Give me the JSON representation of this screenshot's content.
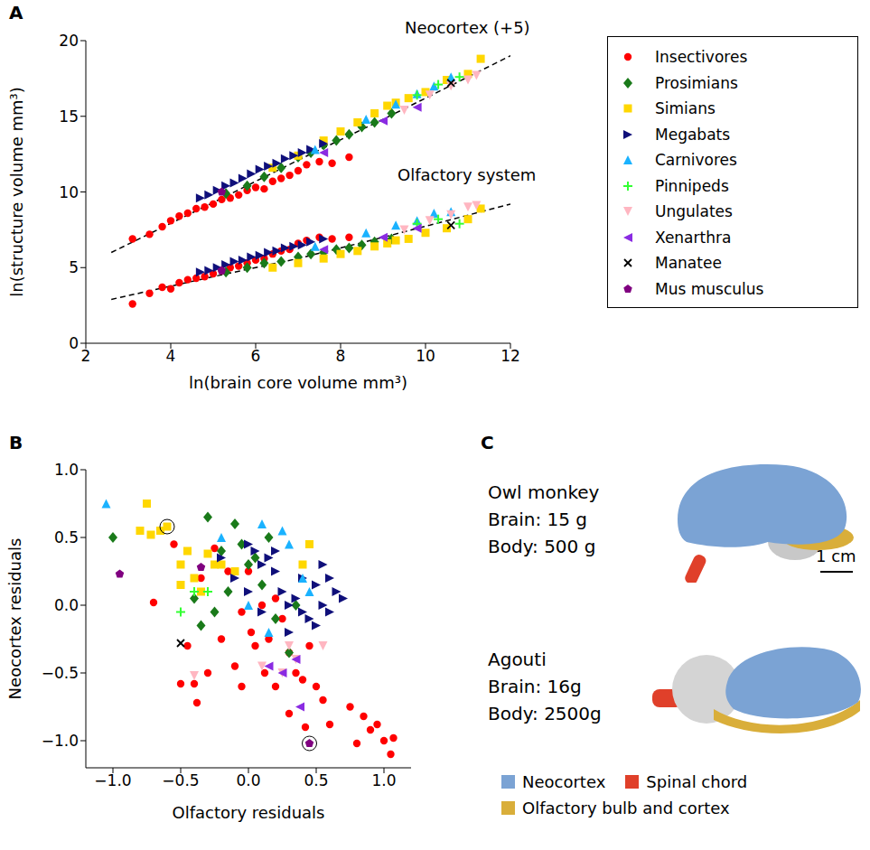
{
  "chart_data": [
    {
      "panel": "A",
      "type": "scatter",
      "xlabel": "ln(brain core volume mm³)",
      "ylabel": "ln(structure volume mm³)",
      "xlim": [
        2,
        12
      ],
      "xticks": [
        2,
        4,
        6,
        8,
        10,
        12
      ],
      "ylim": [
        0,
        20
      ],
      "yticks": [
        0,
        5,
        10,
        15,
        20
      ],
      "annotations": [
        "Neocortex (+5)",
        "Olfactory system"
      ],
      "legend": "right",
      "grid": false,
      "fits": [
        {
          "color": "#000000",
          "line_style": "dashed",
          "x": [
            2.6,
            5,
            7,
            9,
            12
          ],
          "y": [
            6.0,
            9.3,
            12.1,
            14.8,
            19.0
          ]
        },
        {
          "color": "#000000",
          "line_style": "dashed",
          "x": [
            2.6,
            5,
            7,
            9,
            12
          ],
          "y": [
            2.9,
            4.4,
            5.6,
            7.0,
            9.2
          ]
        }
      ],
      "series": [
        {
          "name": "Insectivores",
          "color": "#ff0000",
          "marker": "circle",
          "x": [
            3.1,
            3.5,
            3.8,
            4.0,
            4.2,
            4.4,
            4.6,
            4.8,
            5.0,
            5.2,
            5.4,
            5.6,
            5.8,
            6.0,
            6.2,
            6.4,
            6.6,
            6.8,
            7.0,
            7.2,
            7.5,
            7.8,
            8.2
          ],
          "neocortex": [
            6.9,
            7.2,
            7.7,
            8.1,
            8.4,
            8.6,
            8.9,
            9.0,
            9.2,
            9.5,
            9.6,
            9.8,
            10.1,
            10.3,
            10.2,
            10.7,
            10.9,
            11.1,
            11.4,
            11.8,
            12.0,
            11.9,
            12.3
          ],
          "olfactory": [
            2.6,
            3.3,
            3.7,
            3.6,
            4.0,
            4.2,
            4.3,
            4.4,
            4.6,
            4.8,
            5.0,
            5.1,
            5.3,
            5.5,
            5.6,
            5.9,
            6.1,
            6.2,
            6.6,
            6.8,
            7.0,
            6.9,
            7.0
          ]
        },
        {
          "name": "Prosimians",
          "color": "#1a7a1a",
          "marker": "diamond",
          "x": [
            5.3,
            5.8,
            6.2,
            6.6,
            7.0,
            7.3,
            7.6,
            7.9,
            8.2,
            8.5,
            8.8,
            9.2
          ],
          "neocortex": [
            9.9,
            10.4,
            11.0,
            11.6,
            12.3,
            12.6,
            13.1,
            13.4,
            13.8,
            14.3,
            14.6,
            15.2
          ],
          "olfactory": [
            4.7,
            5.0,
            5.3,
            5.4,
            5.7,
            5.9,
            6.0,
            6.2,
            6.3,
            6.5,
            6.7,
            6.9
          ]
        },
        {
          "name": "Simians",
          "color": "#ffd700",
          "marker": "square",
          "x": [
            6.4,
            7.0,
            7.6,
            8.0,
            8.4,
            8.8,
            9.1,
            9.3,
            9.6,
            10.0,
            10.5,
            11.0,
            11.3
          ],
          "neocortex": [
            11.6,
            12.4,
            13.4,
            14.0,
            14.6,
            15.2,
            15.7,
            15.9,
            16.2,
            16.6,
            17.4,
            17.8,
            18.8
          ],
          "olfactory": [
            5.0,
            5.3,
            5.6,
            5.9,
            6.1,
            6.4,
            6.6,
            6.8,
            6.9,
            7.3,
            7.6,
            8.2,
            8.9
          ]
        },
        {
          "name": "Megabats",
          "color": "#0f0f7a",
          "marker": "triangle-right",
          "x": [
            4.7,
            4.9,
            5.1,
            5.3,
            5.5,
            5.7,
            5.9,
            6.1,
            6.3,
            6.5,
            6.7,
            6.9,
            7.1,
            7.3,
            7.6
          ],
          "neocortex": [
            9.6,
            9.8,
            10.1,
            10.4,
            10.6,
            10.9,
            11.2,
            11.5,
            11.7,
            11.9,
            12.2,
            12.4,
            12.6,
            12.8,
            13.2
          ],
          "olfactory": [
            4.7,
            4.8,
            5.0,
            5.2,
            5.4,
            5.5,
            5.7,
            5.8,
            6.0,
            6.1,
            6.3,
            6.4,
            6.5,
            6.7,
            6.9
          ]
        },
        {
          "name": "Carnivores",
          "color": "#1ab2ff",
          "marker": "triangle-up",
          "x": [
            7.4,
            8.6,
            9.3,
            9.8,
            10.2,
            10.6
          ],
          "neocortex": [
            12.8,
            14.8,
            15.8,
            16.5,
            17.0,
            17.6
          ],
          "olfactory": [
            6.4,
            7.3,
            7.8,
            8.1,
            8.6,
            8.7
          ]
        },
        {
          "name": "Pinnipeds",
          "color": "#33ff33",
          "marker": "plus",
          "x": [
            9.8,
            10.3,
            10.8
          ],
          "neocortex": [
            16.4,
            17.1,
            17.6
          ],
          "olfactory": [
            7.9,
            8.2,
            7.9
          ]
        },
        {
          "name": "Ungulates",
          "color": "#ffb6c1",
          "marker": "triangle-down",
          "x": [
            9.5,
            10.1,
            10.6,
            11.0,
            11.2
          ],
          "neocortex": [
            15.4,
            16.4,
            17.0,
            17.4,
            17.7
          ],
          "olfactory": [
            7.5,
            8.1,
            8.5,
            9.0,
            9.1
          ]
        },
        {
          "name": "Xenarthra",
          "color": "#8a2be2",
          "marker": "triangle-left",
          "x": [
            7.6,
            9.0,
            9.8
          ],
          "neocortex": [
            12.6,
            14.7,
            15.6
          ],
          "olfactory": [
            6.2,
            7.0,
            7.6
          ]
        },
        {
          "name": "Manatee",
          "color": "#000000",
          "marker": "x",
          "x": [
            10.6
          ],
          "neocortex": [
            17.2
          ],
          "olfactory": [
            7.8
          ]
        },
        {
          "name": "Mus musculus",
          "color": "#800080",
          "marker": "pentagon",
          "x": [
            5.2
          ],
          "neocortex": [
            10.0
          ],
          "olfactory": [
            4.8
          ]
        }
      ]
    },
    {
      "panel": "B",
      "type": "scatter",
      "xlabel": "Olfactory residuals",
      "ylabel": "Neocortex residuals",
      "xlim": [
        -1.2,
        1.2
      ],
      "ylim": [
        -1.2,
        1.0
      ],
      "grid": false,
      "xticks": [
        {
          "value": -1,
          "label": "−1.0"
        },
        {
          "value": -0.5,
          "label": "−0.5"
        },
        {
          "value": 0,
          "label": "0.0"
        },
        {
          "value": 0.5,
          "label": "0.5"
        },
        {
          "value": 1,
          "label": "1.0"
        }
      ],
      "yticks": [
        {
          "value": -1,
          "label": "−1.0"
        },
        {
          "value": -0.5,
          "label": "−0.5"
        },
        {
          "value": 0,
          "label": "0.0"
        },
        {
          "value": 0.5,
          "label": "0.5"
        },
        {
          "value": 1,
          "label": "1.0"
        }
      ],
      "highlighted": [
        {
          "x": -0.6,
          "y": 0.58
        },
        {
          "x": 0.45,
          "y": -1.02
        }
      ],
      "series": [
        {
          "name": "Insectivores",
          "color": "#ff0000",
          "marker": "circle",
          "x": [
            -0.7,
            -0.55,
            -0.5,
            -0.4,
            -0.38,
            -0.3,
            -0.2,
            -0.15,
            -0.1,
            -0.05,
            0.0,
            0.02,
            0.05,
            0.1,
            0.12,
            0.15,
            0.2,
            0.25,
            0.3,
            0.35,
            0.4,
            0.42,
            0.45,
            0.5,
            0.55,
            0.6,
            0.75,
            0.8,
            0.85,
            0.9,
            0.95,
            1.0,
            1.05,
            1.07,
            -0.25,
            -0.35,
            -0.05,
            0.2,
            -0.45,
            0.3
          ],
          "y": [
            0.02,
            0.45,
            -0.58,
            -0.58,
            -0.72,
            -0.5,
            -0.25,
            0.25,
            -0.45,
            -0.6,
            0.25,
            -0.2,
            -0.3,
            0.0,
            -0.5,
            -0.25,
            -0.6,
            -0.1,
            -0.35,
            -0.5,
            -0.55,
            -0.9,
            -0.3,
            -0.6,
            -0.7,
            -0.88,
            -0.75,
            -1.02,
            -0.82,
            -0.92,
            -0.88,
            -1.0,
            -1.1,
            -0.98,
            0.42,
            0.2,
            -0.05,
            0.05,
            -0.3,
            -0.8
          ]
        },
        {
          "name": "Prosimians",
          "color": "#1a7a1a",
          "marker": "diamond",
          "x": [
            -1.0,
            -0.4,
            -0.3,
            -0.2,
            -0.1,
            -0.05,
            0.0,
            0.05,
            -0.35,
            -0.25,
            0.1,
            0.2,
            0.3,
            0.35,
            -0.15,
            0.15
          ],
          "y": [
            0.5,
            0.05,
            0.65,
            0.4,
            0.6,
            0.45,
            0.3,
            0.35,
            -0.15,
            -0.05,
            0.15,
            -0.1,
            -0.35,
            0.0,
            0.1,
            0.5
          ]
        },
        {
          "name": "Simians",
          "color": "#ffd700",
          "marker": "square",
          "x": [
            -0.75,
            -0.8,
            -0.72,
            -0.65,
            -0.6,
            -0.5,
            -0.45,
            -0.4,
            -0.3,
            -0.25,
            -0.2,
            -0.1,
            -0.5,
            -0.35,
            0.45,
            0.4
          ],
          "y": [
            0.75,
            0.55,
            0.52,
            0.55,
            0.58,
            0.3,
            0.4,
            0.2,
            0.38,
            0.3,
            0.3,
            0.25,
            0.15,
            0.1,
            0.45,
            0.3
          ]
        },
        {
          "name": "Megabats",
          "color": "#0f0f7a",
          "marker": "triangle-right",
          "x": [
            -0.2,
            -0.1,
            0.0,
            0.05,
            0.1,
            0.15,
            0.2,
            0.25,
            0.3,
            0.35,
            0.4,
            0.45,
            0.5,
            0.55,
            0.6,
            0.65,
            0.7,
            0.5,
            0.3,
            0.1,
            0.2,
            0.55,
            0.6,
            0.0,
            0.4
          ],
          "y": [
            0.35,
            0.2,
            0.45,
            0.4,
            0.3,
            0.35,
            0.25,
            0.1,
            0.0,
            0.05,
            -0.05,
            -0.1,
            0.15,
            0.0,
            -0.05,
            0.1,
            0.05,
            -0.15,
            -0.2,
            -0.05,
            0.4,
            0.3,
            0.2,
            0.1,
            0.2
          ]
        },
        {
          "name": "Carnivores",
          "color": "#1ab2ff",
          "marker": "triangle-up",
          "x": [
            -1.05,
            -0.2,
            0.1,
            0.25,
            0.3,
            0.4,
            0.45,
            0.0,
            0.15
          ],
          "y": [
            0.75,
            0.5,
            0.6,
            0.55,
            0.45,
            0.2,
            0.1,
            0.0,
            -0.2
          ]
        },
        {
          "name": "Pinnipeds",
          "color": "#33ff33",
          "marker": "plus",
          "x": [
            -0.5,
            -0.3,
            -0.4
          ],
          "y": [
            -0.05,
            0.1,
            0.1
          ]
        },
        {
          "name": "Ungulates",
          "color": "#ffb6c1",
          "marker": "triangle-down",
          "x": [
            -0.4,
            0.1,
            0.25,
            0.3,
            0.35,
            0.55
          ],
          "y": [
            -0.52,
            -0.45,
            -0.5,
            -0.3,
            -0.4,
            -0.3
          ]
        },
        {
          "name": "Xenarthra",
          "color": "#8a2be2",
          "marker": "triangle-left",
          "x": [
            0.15,
            0.25,
            0.38,
            0.35
          ],
          "y": [
            -0.45,
            -0.5,
            -0.75,
            -0.4
          ]
        },
        {
          "name": "Manatee",
          "color": "#000000",
          "marker": "x",
          "x": [
            -0.5
          ],
          "y": [
            -0.28
          ]
        },
        {
          "name": "Mus musculus",
          "color": "#800080",
          "marker": "pentagon",
          "x": [
            -0.95,
            -0.35,
            0.45
          ],
          "y": [
            0.23,
            0.28,
            -1.02
          ]
        }
      ]
    }
  ],
  "panel_c": {
    "panel": "C",
    "type": "diagram",
    "specimens": [
      {
        "name": "Owl monkey",
        "brain": "Brain: 15 g",
        "body": "Body: 500 g"
      },
      {
        "name": "Agouti",
        "brain": "Brain: 16g",
        "body": "Body: 2500g"
      }
    ],
    "scale_bar": "1 cm",
    "legend": [
      {
        "label": "Neocortex",
        "color": "#7ba3d4"
      },
      {
        "label": "Spinal chord",
        "color": "#e0402a"
      },
      {
        "label": "Olfactory bulb and cortex",
        "color": "#d9ae3a"
      }
    ]
  }
}
